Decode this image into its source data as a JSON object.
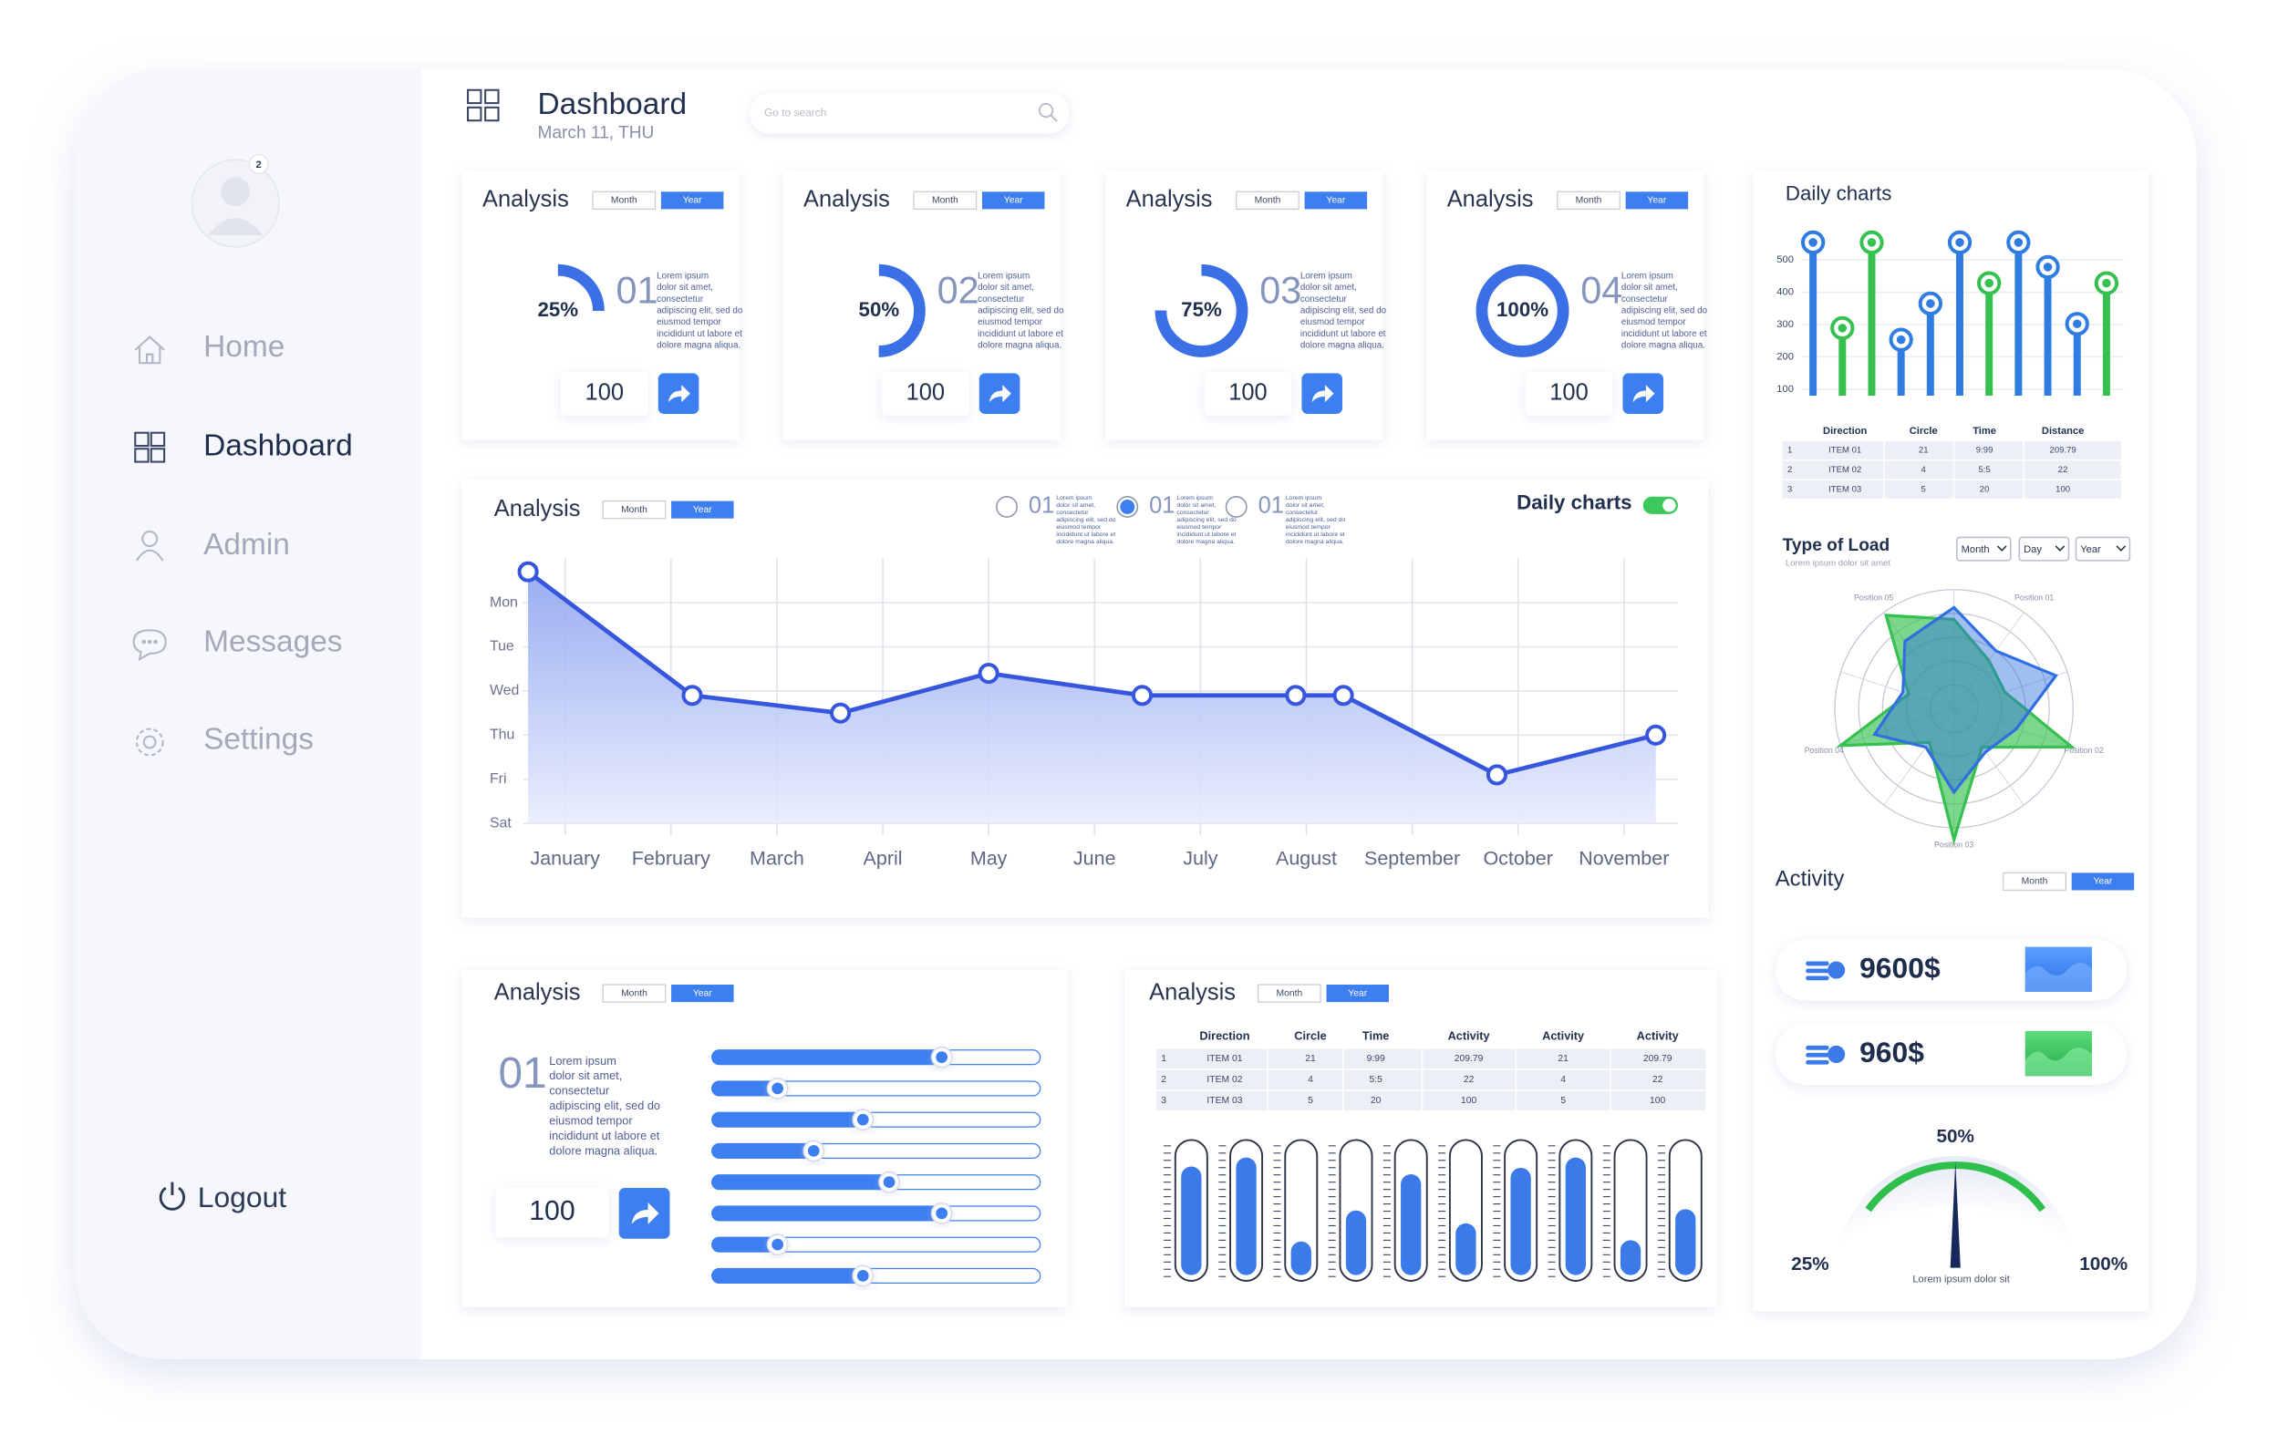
{
  "sidebar": {
    "badge": "2",
    "nav": [
      "Home",
      "Dashboard",
      "Admin",
      "Messages",
      "Settings"
    ],
    "active": 1,
    "logout": "Logout"
  },
  "header": {
    "title": "Dashboard",
    "date": "March 11, THU",
    "search": "Go to search"
  },
  "cards": [
    {
      "title": "Analysis",
      "tabs": [
        "Month",
        "Year"
      ],
      "percent": 25,
      "percent_label": "25%",
      "number": "01",
      "text": [
        "Lorem ipsum",
        "dolor sit amet,",
        "consectetur",
        "adipiscing elit, sed do",
        "eiusmod tempor",
        "incididunt ut labore et",
        "dolore magna aliqua."
      ],
      "count": 100
    },
    {
      "title": "Analysis",
      "tabs": [
        "Month",
        "Year"
      ],
      "percent": 50,
      "percent_label": "50%",
      "number": "02",
      "text": [
        "Lorem ipsum",
        "dolor sit amet,",
        "consectetur",
        "adipiscing elit, sed do",
        "eiusmod tempor",
        "incididunt ut labore et",
        "dolore magna aliqua."
      ],
      "count": 100
    },
    {
      "title": "Analysis",
      "tabs": [
        "Month",
        "Year"
      ],
      "percent": 75,
      "percent_label": "75%",
      "number": "03",
      "text": [
        "Lorem ipsum",
        "dolor sit amet,",
        "consectetur",
        "adipiscing elit, sed do",
        "eiusmod tempor",
        "incididunt ut labore et",
        "dolore magna aliqua."
      ],
      "count": 100
    },
    {
      "title": "Analysis",
      "tabs": [
        "Month",
        "Year"
      ],
      "percent": 100,
      "percent_label": "100%",
      "number": "04",
      "text": [
        "Lorem ipsum",
        "dolor sit amet,",
        "consectetur",
        "adipiscing elit, sed do",
        "eiusmod tempor",
        "incididunt ut labore et",
        "dolore magna aliqua."
      ],
      "count": 100
    }
  ],
  "main_chart": {
    "title": "Analysis",
    "tabs": [
      "Month",
      "Year"
    ],
    "legend": [
      {
        "number": "01",
        "text": [
          "Lorem ipsum",
          "dolor sit amet,",
          "consectetur",
          "adipiscing elit, sed do",
          "eiusmod tempor",
          "incididunt ut labore et",
          "dolore magna aliqua."
        ]
      },
      {
        "number": "01",
        "text": [
          "Lorem ipsum",
          "dolor sit amet,",
          "consectetur",
          "adipiscing elit, sed do",
          "eiusmod tempor",
          "incididunt ut labore et",
          "dolore magna aliqua."
        ]
      },
      {
        "number": "01",
        "text": [
          "Lorem ipsum",
          "dolor sit amet,",
          "consectetur",
          "adipiscing elit, sed do",
          "eiusmod tempor",
          "incididunt ut labore et",
          "dolore magna aliqua."
        ]
      }
    ],
    "legend_selected": 1,
    "toggle_label": "Daily charts",
    "toggle_on": true,
    "chart": {
      "type": "line",
      "color": "#3556dd",
      "x": [
        -0.35,
        1.2,
        2.6,
        4.0,
        5.45,
        6.9,
        7.35,
        8.8,
        10.3
      ],
      "values": [
        5.7,
        2.9,
        2.5,
        3.4,
        2.9,
        2.9,
        2.9,
        1.1,
        2.0
      ],
      "xlim": [
        -0.4,
        10.4
      ],
      "ylim": [
        0,
        6
      ],
      "xticks": [
        {
          "value": 0,
          "label": "January"
        },
        {
          "value": 1,
          "label": "February"
        },
        {
          "value": 2,
          "label": "March"
        },
        {
          "value": 3,
          "label": "April"
        },
        {
          "value": 4,
          "label": "May"
        },
        {
          "value": 5,
          "label": "June"
        },
        {
          "value": 6,
          "label": "July"
        },
        {
          "value": 7,
          "label": "August"
        },
        {
          "value": 8,
          "label": "September"
        },
        {
          "value": 9,
          "label": "October"
        },
        {
          "value": 10,
          "label": "November"
        }
      ],
      "yticks": [
        {
          "value": 5,
          "label": "Mon"
        },
        {
          "value": 4,
          "label": "Tue"
        },
        {
          "value": 3,
          "label": "Wed"
        },
        {
          "value": 2,
          "label": "Thu"
        },
        {
          "value": 1,
          "label": "Fri"
        },
        {
          "value": 0,
          "label": "Sat"
        }
      ],
      "grid": true
    }
  },
  "daily": {
    "title": "Daily charts",
    "chart": {
      "type": "lollipop",
      "ylim": [
        80,
        560
      ],
      "yticks": [
        100,
        200,
        300,
        400,
        500
      ],
      "grid": true,
      "series": [
        {
          "color": "#2f7de1",
          "values": [
            554,
            null,
            null,
            253,
            365,
            554,
            null,
            554,
            478,
            302,
            null
          ]
        },
        {
          "color": "#35c04f",
          "values": [
            null,
            289,
            554,
            null,
            null,
            null,
            428,
            null,
            null,
            null,
            428
          ]
        }
      ]
    },
    "table": {
      "header": [
        "Direction",
        "Circle",
        "Time",
        "Distance"
      ],
      "rows": [
        [
          "1",
          "ITEM 01",
          "21",
          "9:99",
          "209.79"
        ],
        [
          "2",
          "ITEM 02",
          "4",
          "5:5",
          "22"
        ],
        [
          "3",
          "ITEM 03",
          "5",
          "20",
          "100"
        ]
      ]
    }
  },
  "load": {
    "title": "Type of Load",
    "subtitle": "Lorem ipsum dolor sit amet",
    "selects": [
      "Month",
      "Day",
      "Year"
    ],
    "chart": {
      "type": "radar",
      "axes": [
        null,
        "Position 01",
        null,
        "Position 02",
        null,
        "Position 03",
        null,
        "Position 04",
        null,
        "Position 05"
      ],
      "rlim": [
        0,
        100
      ],
      "rticks": [
        20,
        40,
        60,
        80,
        100
      ],
      "series": [
        {
          "color": "#35c04f",
          "values": [
            75,
            50,
            45,
            104,
            40,
            110,
            35,
            100,
            40,
            97
          ]
        },
        {
          "color": "#2f6fe0",
          "values": [
            85,
            60,
            90,
            55,
            45,
            70,
            40,
            70,
            45,
            70
          ]
        }
      ]
    }
  },
  "activity": {
    "title": "Activity",
    "tabs": [
      "Month",
      "Year"
    ],
    "items": [
      "9600$",
      "960$"
    ],
    "gauge": {
      "value_label": "50%",
      "min_label": "25%",
      "max_label": "100%",
      "caption": "Lorem ipsum  dolor sit"
    }
  },
  "sliders": {
    "title": "Analysis",
    "tabs": [
      "Month",
      "Year"
    ],
    "number": "01",
    "text": [
      "Lorem ipsum",
      "dolor sit amet,",
      "consectetur",
      "adipiscing elit, sed do",
      "eiusmod tempor",
      "incididunt ut labore et",
      "dolore magna aliqua."
    ],
    "count": 100,
    "chart": {
      "type": "slider",
      "values": [
        70,
        20,
        46,
        31,
        54,
        70,
        20,
        46
      ],
      "xlim": [
        0,
        100
      ]
    }
  },
  "table_panel": {
    "title": "Analysis",
    "tabs": [
      "Month",
      "Year"
    ],
    "table": {
      "header": [
        "Direction",
        "Circle",
        "Time",
        "Activity",
        "Activity",
        "Activity"
      ],
      "rows": [
        [
          "1",
          "ITEM 01",
          "21",
          "9:99",
          "209.79",
          "21",
          "209.79"
        ],
        [
          "2",
          "ITEM 02",
          "4",
          "5:5",
          "22",
          "4",
          "22"
        ],
        [
          "3",
          "ITEM 03",
          "5",
          "20",
          "100",
          "5",
          "100"
        ]
      ]
    },
    "chart": {
      "type": "capsule",
      "values": [
        84,
        91,
        26,
        50,
        78,
        40,
        83,
        91,
        27,
        51
      ],
      "ylim": [
        0,
        100
      ]
    }
  }
}
